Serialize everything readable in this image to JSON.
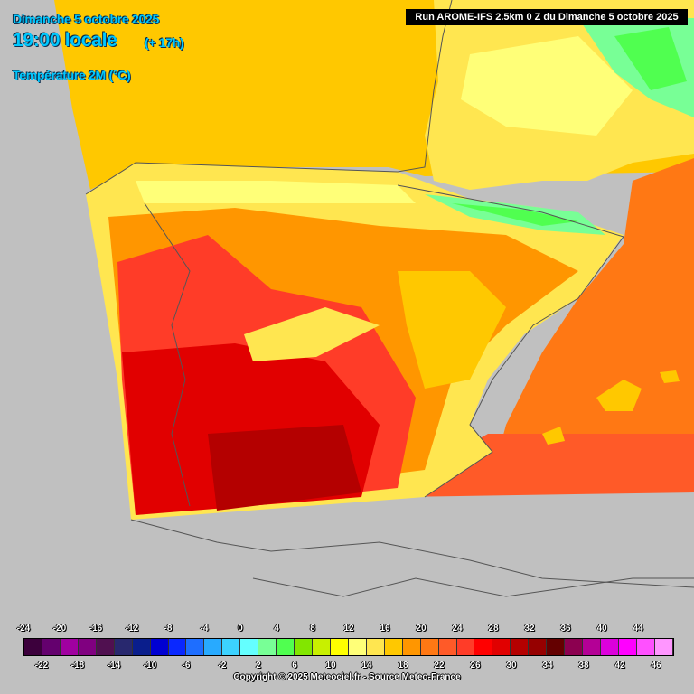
{
  "header": {
    "date_line": "Dimanche 5 octobre 2025",
    "time_line": "19:00 locale",
    "lead_time": "(+ 17h)",
    "parameter": "Température 2M (°C)",
    "run_info": "Run AROME-IFS 2.5km 0 Z du Dimanche 5 octobre 2025"
  },
  "legend": {
    "top_labels": [
      "-24",
      "-20",
      "-16",
      "-12",
      "-8",
      "-4",
      "0",
      "4",
      "8",
      "12",
      "16",
      "20",
      "24",
      "28",
      "32",
      "36",
      "40",
      "44"
    ],
    "bottom_labels": [
      "-22",
      "-18",
      "-14",
      "-10",
      "-6",
      "-2",
      "2",
      "6",
      "10",
      "14",
      "18",
      "22",
      "26",
      "30",
      "34",
      "38",
      "42",
      "46"
    ],
    "colors": [
      "#3c003c",
      "#64006e",
      "#a000a0",
      "#800080",
      "#501050",
      "#28286e",
      "#0a1e8c",
      "#0000d2",
      "#0a28ff",
      "#1e6eff",
      "#28aaff",
      "#3cd2ff",
      "#64ffff",
      "#78ff96",
      "#50ff50",
      "#82e600",
      "#c8f000",
      "#ffff00",
      "#ffff78",
      "#ffe650",
      "#ffc800",
      "#ff9600",
      "#ff7814",
      "#ff5a28",
      "#ff3c28",
      "#ff0000",
      "#e10000",
      "#b40000",
      "#960000",
      "#640000",
      "#8c0050",
      "#b40096",
      "#dc00dc",
      "#ff00ff",
      "#ff50ff",
      "#ff96ff"
    ]
  },
  "map_colors": {
    "background": "#c0c0c0",
    "sea_north": "#ffc800",
    "sea_east": "#ff7814",
    "sea_south": "#ff5a28",
    "land_north": "#ffe650",
    "land_center": "#ff9600",
    "land_hot": "#ff3c28",
    "land_hottest": "#e10000",
    "mountains_cool": "#78ff96",
    "mountains_cold": "#50ff50",
    "plateau": "#ffff78"
  },
  "footer": {
    "copyright": "Copyright © 2025 Meteociel.fr - Source Meteo-France"
  }
}
